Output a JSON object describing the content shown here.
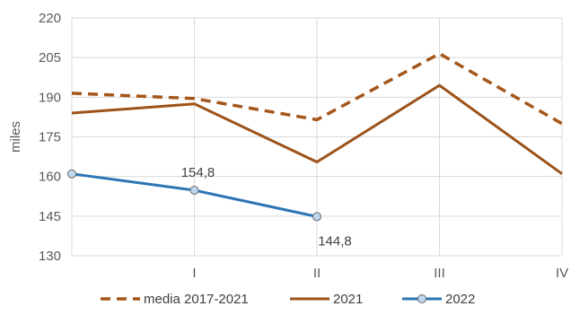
{
  "chart_data": {
    "type": "line",
    "title": "",
    "xlabel": "",
    "ylabel": "miles",
    "x": [
      "",
      "I",
      "II",
      "III",
      "IV"
    ],
    "ylim": [
      130,
      220
    ],
    "yticks": [
      130,
      145,
      160,
      175,
      190,
      205,
      220
    ],
    "grid": true,
    "legend_position": "bottom",
    "series": [
      {
        "name": "media 2017-2021",
        "style": "dashed",
        "color": "#A5561A",
        "values": [
          191.5,
          189.5,
          181.5,
          206.5,
          180.0
        ]
      },
      {
        "name": "2021",
        "style": "solid",
        "color": "#9C5218",
        "values": [
          184.0,
          187.5,
          165.5,
          194.5,
          161.0
        ]
      },
      {
        "name": "2022",
        "style": "solid-markers",
        "color": "#2E75B6",
        "marker_fill": "#BDD7EE",
        "marker_stroke": "#6C6C6C",
        "values": [
          161.0,
          154.8,
          144.8,
          null,
          null
        ]
      }
    ],
    "annotations": [
      {
        "series": "2022",
        "x": "I",
        "text": "154,8"
      },
      {
        "series": "2022",
        "x": "II",
        "text": "144,8"
      }
    ]
  }
}
